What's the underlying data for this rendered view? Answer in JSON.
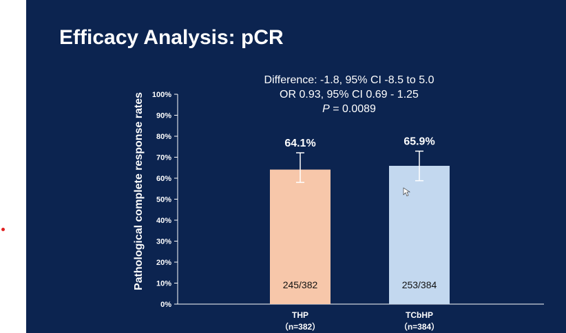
{
  "slide": {
    "title": "Efficacy Analysis: pCR",
    "stats": {
      "difference": "Difference: -1.8, 95% CI -8.5 to 5.0",
      "odds_ratio": "OR 0.93, 95% CI 0.69 - 1.25",
      "p_label": "P",
      "p_value": " = 0.0089"
    }
  },
  "colors": {
    "background": "#0c2450",
    "thp_bar": "#f7c7aa",
    "tcbhp_bar": "#c3d8ef",
    "axis": "#ffffff"
  },
  "chart_data": {
    "type": "bar",
    "title": "",
    "xlabel": "",
    "ylabel": "Pathological complete response rates",
    "ylim": [
      0,
      100
    ],
    "yticks": [
      "0%",
      "10%",
      "20%",
      "30%",
      "40%",
      "50%",
      "60%",
      "70%",
      "80%",
      "90%",
      "100%"
    ],
    "grid": false,
    "categories": [
      "THP",
      "TCbHP"
    ],
    "category_sublabels": [
      "（n=382）",
      "（n=384）"
    ],
    "values": [
      64.1,
      65.9
    ],
    "value_labels": [
      "64.1%",
      "65.9%"
    ],
    "error_bars": [
      {
        "low": 58.0,
        "high": 72.1
      },
      {
        "low": 58.8,
        "high": 72.9
      }
    ],
    "count_labels": [
      "245/382",
      "253/384"
    ]
  }
}
